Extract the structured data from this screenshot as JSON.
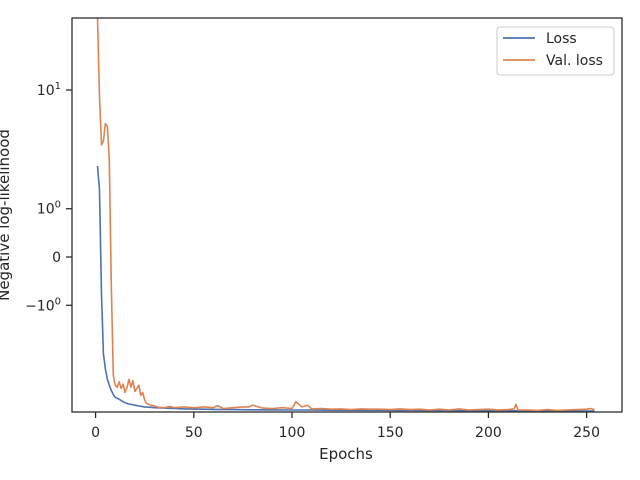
{
  "chart_data": {
    "type": "line",
    "title": "",
    "xlabel": "Epochs",
    "ylabel": "Negative log-likelihood",
    "xlim": [
      -12,
      268
    ],
    "x_ticks": [
      0,
      50,
      100,
      150,
      200,
      250
    ],
    "y_scale": "symlog",
    "y_ticks": [
      {
        "value": 10,
        "label": "10^1"
      },
      {
        "value": 1,
        "label": "10^0"
      },
      {
        "value": 0,
        "label": "0"
      },
      {
        "value": -1,
        "label": "−10^0"
      }
    ],
    "grid": false,
    "legend_position": "top-right",
    "colors": {
      "Loss": "#4c72b0",
      "Val. loss": "#dd8452"
    },
    "series": [
      {
        "name": "Loss",
        "x": [
          1,
          2,
          3,
          4,
          5,
          6,
          7,
          8,
          9,
          10,
          12,
          14,
          16,
          18,
          20,
          22,
          25,
          28,
          30,
          35,
          40,
          45,
          50,
          55,
          60,
          70,
          80,
          90,
          100,
          110,
          120,
          130,
          140,
          150,
          160,
          170,
          180,
          190,
          200,
          210,
          220,
          230,
          240,
          250,
          254
        ],
        "y": [
          2.7,
          1.6,
          -0.7,
          -3.0,
          -4.0,
          -4.8,
          -5.3,
          -5.8,
          -6.2,
          -6.5,
          -6.7,
          -7.0,
          -7.2,
          -7.3,
          -7.4,
          -7.5,
          -7.6,
          -7.65,
          -7.7,
          -7.75,
          -7.8,
          -7.85,
          -7.88,
          -7.9,
          -7.92,
          -7.95,
          -7.97,
          -7.98,
          -8.0,
          -8.0,
          -8.02,
          -8.03,
          -8.04,
          -8.05,
          -8.06,
          -8.07,
          -8.08,
          -8.09,
          -8.1,
          -8.1,
          -8.11,
          -8.12,
          -8.12,
          -8.13,
          -8.12
        ]
      },
      {
        "name": "Val. loss",
        "x": [
          1,
          2,
          3,
          4,
          5,
          6,
          7,
          8,
          9,
          10,
          11,
          12,
          13,
          14,
          15,
          16,
          17,
          18,
          19,
          20,
          21,
          22,
          23,
          24,
          25,
          26,
          28,
          30,
          32,
          35,
          38,
          40,
          45,
          50,
          55,
          60,
          62,
          65,
          70,
          75,
          78,
          80,
          85,
          90,
          95,
          100,
          102,
          105,
          108,
          110,
          115,
          120,
          125,
          130,
          135,
          140,
          145,
          150,
          155,
          160,
          165,
          170,
          175,
          180,
          185,
          190,
          195,
          200,
          205,
          210,
          213,
          214,
          215,
          220,
          225,
          230,
          235,
          240,
          245,
          250,
          252,
          254
        ],
        "y": [
          38,
          9.0,
          4.0,
          4.3,
          5.8,
          5.5,
          3.0,
          -0.5,
          -4.5,
          -5.3,
          -5.5,
          -5.0,
          -5.6,
          -5.2,
          -6.0,
          -5.5,
          -4.8,
          -5.5,
          -4.9,
          -5.9,
          -5.6,
          -5.3,
          -6.3,
          -6.0,
          -6.8,
          -7.2,
          -7.4,
          -7.5,
          -7.65,
          -7.7,
          -7.55,
          -7.7,
          -7.6,
          -7.72,
          -7.6,
          -7.7,
          -7.45,
          -7.8,
          -7.7,
          -7.6,
          -7.6,
          -7.4,
          -7.75,
          -7.8,
          -7.7,
          -7.8,
          -7.0,
          -7.6,
          -7.4,
          -7.85,
          -7.8,
          -7.9,
          -7.85,
          -7.95,
          -7.85,
          -7.9,
          -7.9,
          -7.95,
          -7.85,
          -7.95,
          -7.9,
          -8.0,
          -7.9,
          -8.0,
          -7.85,
          -8.0,
          -7.95,
          -7.9,
          -8.0,
          -7.95,
          -7.85,
          -7.3,
          -8.0,
          -8.0,
          -8.05,
          -7.95,
          -8.05,
          -8.0,
          -7.95,
          -7.9,
          -7.8,
          -7.95
        ]
      }
    ]
  }
}
